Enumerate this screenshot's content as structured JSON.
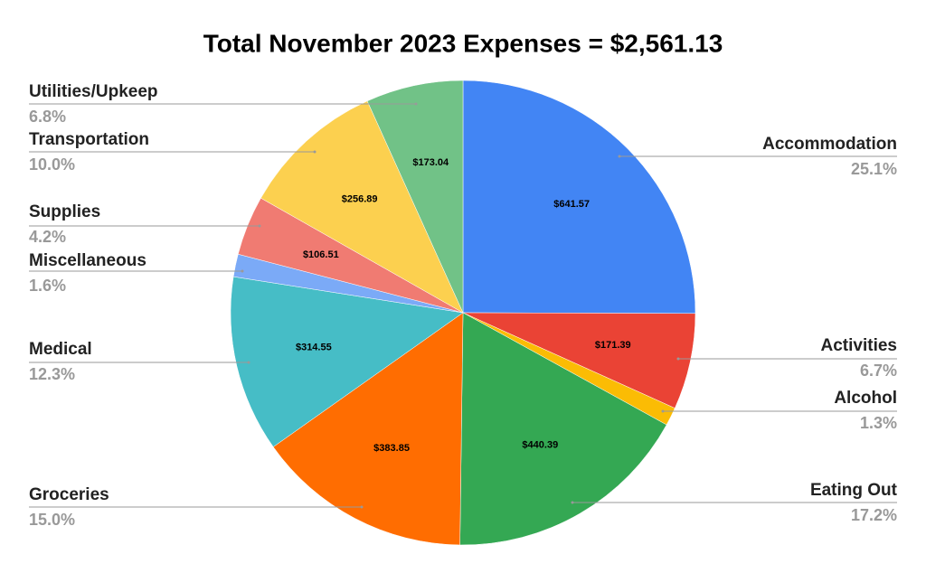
{
  "chart_data": {
    "type": "pie",
    "title": "Total November 2023 Expenses = $2,561.13",
    "categories": [
      "Accommodation",
      "Activities",
      "Alcohol",
      "Eating Out",
      "Groceries",
      "Medical",
      "Miscellaneous",
      "Supplies",
      "Transportation",
      "Utilities/Upkeep"
    ],
    "values": [
      641.57,
      171.39,
      32.6,
      440.39,
      383.85,
      314.55,
      40.34,
      106.51,
      256.89,
      173.04
    ],
    "value_labels": [
      "$641.57",
      "$171.39",
      null,
      "$440.39",
      "$383.85",
      "$314.55",
      null,
      "$106.51",
      "$256.89",
      "$173.04"
    ],
    "percentages": [
      25.1,
      6.7,
      1.3,
      17.2,
      15.0,
      12.3,
      1.6,
      4.2,
      10.0,
      6.8
    ],
    "percentage_labels": [
      "25.1%",
      "6.7%",
      "1.3%",
      "17.2%",
      "15.0%",
      "12.3%",
      "1.6%",
      "4.2%",
      "10.0%",
      "6.8%"
    ],
    "colors": [
      "#4285f4",
      "#ea4335",
      "#fbbc04",
      "#34a853",
      "#ff6d01",
      "#46bdc6",
      "#7baaf7",
      "#f07b72",
      "#fcd04f",
      "#71c287"
    ]
  }
}
